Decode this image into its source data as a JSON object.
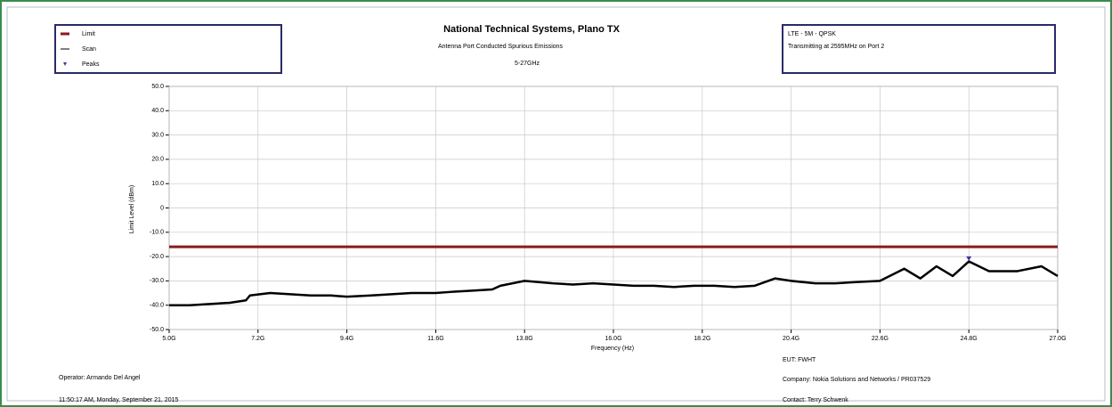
{
  "chart_data": {
    "type": "line",
    "title": "National Technical Systems, Plano TX",
    "subtitle": "Antenna Port Conducted Spurious Emissions",
    "range_text": "5-27GHz",
    "info": [
      "LTE - 5M - QPSK",
      "Transmitting at 2595MHz on Port 2"
    ],
    "xlabel": "Frequency (Hz)",
    "ylabel": "Limit Level (dBm)",
    "footer_left": [
      "Operator: Armando Del Angel",
      "11:50:17 AM, Monday, September 21, 2015"
    ],
    "footer_right": [
      "EUT: FWHT",
      "Company: Nokia Solutions and Networks / PR037529",
      "Contact: Terry Schwenk"
    ],
    "xlim": [
      5000000000,
      27000000000
    ],
    "ylim": [
      -50,
      50
    ],
    "xticks": [
      {
        "value": 5000000000,
        "label": "5.0G"
      },
      {
        "value": 7200000000,
        "label": "7.2G"
      },
      {
        "value": 9400000000,
        "label": "9.4G"
      },
      {
        "value": 11600000000,
        "label": "11.6G"
      },
      {
        "value": 13800000000,
        "label": "13.8G"
      },
      {
        "value": 16000000000,
        "label": "16.0G"
      },
      {
        "value": 18200000000,
        "label": "18.2G"
      },
      {
        "value": 20400000000,
        "label": "20.4G"
      },
      {
        "value": 22600000000,
        "label": "22.6G"
      },
      {
        "value": 24800000000,
        "label": "24.8G"
      },
      {
        "value": 27000000000,
        "label": "27.0G"
      }
    ],
    "yticks": [
      {
        "value": -50,
        "label": "-50.0"
      },
      {
        "value": -40,
        "label": "-40.0"
      },
      {
        "value": -30,
        "label": "-30.0"
      },
      {
        "value": -20,
        "label": "-20.0"
      },
      {
        "value": -10,
        "label": "-10.0"
      },
      0,
      {
        "value": 10,
        "label": "10.0"
      },
      {
        "value": 20,
        "label": "20.0"
      },
      {
        "value": 30,
        "label": "30.0"
      },
      {
        "value": 40,
        "label": "40.0"
      },
      {
        "value": 50,
        "label": "50.0"
      }
    ],
    "grid": true,
    "series": [
      {
        "name": "Limit",
        "color": "#8b1a1a",
        "style": "line",
        "x": [
          5000000000,
          27000000000
        ],
        "values": [
          -16,
          -16
        ]
      },
      {
        "name": "Scan",
        "color": "#000000",
        "style": "line",
        "x": [
          5000000000,
          5500000000,
          6000000000,
          6500000000,
          6900000000,
          7000000000,
          7500000000,
          8000000000,
          8500000000,
          9000000000,
          9400000000,
          10000000000,
          10500000000,
          11000000000,
          11600000000,
          12000000000,
          12500000000,
          13000000000,
          13200000000,
          13800000000,
          14500000000,
          15000000000,
          15500000000,
          16000000000,
          16500000000,
          17000000000,
          17500000000,
          18000000000,
          18500000000,
          19000000000,
          19500000000,
          20000000000,
          20400000000,
          21000000000,
          21500000000,
          22000000000,
          22600000000,
          23200000000,
          23600000000,
          24000000000,
          24400000000,
          24800000000,
          25300000000,
          26000000000,
          26600000000,
          27000000000
        ],
        "values": [
          -40,
          -40,
          -39.5,
          -39,
          -38,
          -36,
          -35,
          -35.5,
          -36,
          -36,
          -36.5,
          -36,
          -35.5,
          -35,
          -35,
          -34.5,
          -34,
          -33.5,
          -32,
          -30,
          -31,
          -31.5,
          -31,
          -31.5,
          -32,
          -32,
          -32.5,
          -32,
          -32,
          -32.5,
          -32,
          -29,
          -30,
          -31,
          -31,
          -30.5,
          -30,
          -25,
          -29,
          -24,
          -28,
          -22,
          -26,
          -26,
          -24,
          -28
        ]
      },
      {
        "name": "Peaks",
        "color": "#3a3aa0",
        "style": "marker",
        "x": [
          24800000000
        ],
        "values": [
          -21
        ]
      }
    ]
  }
}
